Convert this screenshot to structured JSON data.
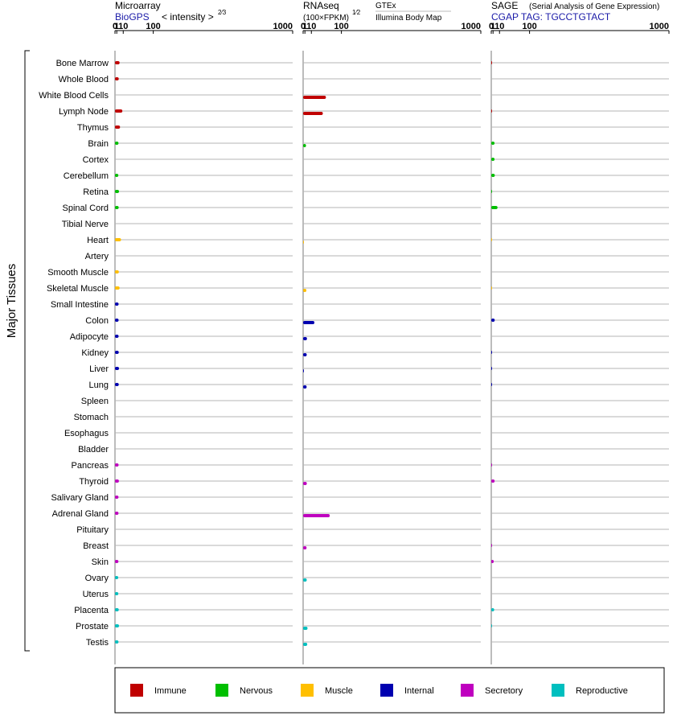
{
  "header": {
    "microarray": {
      "title": "Microarray",
      "source": "BioGPS",
      "scale_label": "< intensity >",
      "scale_power": "2⁄3"
    },
    "rnaseq": {
      "title": "RNAseq",
      "scale_label": "(100×FPKM)",
      "scale_power": "1⁄2",
      "source_top": "GTEx",
      "source_bottom": "Illumina Body Map"
    },
    "sage": {
      "title": "SAGE",
      "subtitle": "(Serial Analysis of Gene Expression)",
      "tag_label": "CGAP TAG: TGCCTGTACT"
    }
  },
  "y_axis_title": "Major Tissues",
  "colors": {
    "Immune": "#c00000",
    "Nervous": "#00bf00",
    "Muscle": "#ffbf00",
    "Internal": "#0000b0",
    "Secretory": "#bf00bf",
    "Reproductive": "#00bfbf"
  },
  "chart_data": {
    "type": "bar",
    "orientation": "horizontal",
    "x_scale": "power",
    "tick_labels": [
      "0",
      "1",
      "10",
      "100",
      "1000"
    ],
    "xlim": [
      0,
      1000
    ],
    "categories": [
      "Bone Marrow",
      "Whole Blood",
      "White Blood Cells",
      "Lymph Node",
      "Thymus",
      "Brain",
      "Cortex",
      "Cerebellum",
      "Retina",
      "Spinal Cord",
      "Tibial Nerve",
      "Heart",
      "Artery",
      "Smooth Muscle",
      "Skeletal Muscle",
      "Small Intestine",
      "Colon",
      "Adipocyte",
      "Kidney",
      "Liver",
      "Lung",
      "Spleen",
      "Stomach",
      "Esophagus",
      "Bladder",
      "Pancreas",
      "Thyroid",
      "Salivary Gland",
      "Adrenal Gland",
      "Pituitary",
      "Breast",
      "Skin",
      "Ovary",
      "Uterus",
      "Placenta",
      "Prostate",
      "Testis"
    ],
    "groups": [
      "Immune",
      "Immune",
      "Immune",
      "Immune",
      "Immune",
      "Nervous",
      "Nervous",
      "Nervous",
      "Nervous",
      "Nervous",
      "Nervous",
      "Muscle",
      "Muscle",
      "Muscle",
      "Muscle",
      "Internal",
      "Internal",
      "Internal",
      "Internal",
      "Internal",
      "Internal",
      "Secretory",
      "Secretory",
      "Secretory",
      "Secretory",
      "Secretory",
      "Secretory",
      "Secretory",
      "Secretory",
      "Secretory",
      "Secretory",
      "Secretory",
      "Reproductive",
      "Reproductive",
      "Reproductive",
      "Reproductive",
      "Reproductive"
    ],
    "panels": [
      {
        "name": "Microarray",
        "values": [
          4.2,
          3.1,
          null,
          8.5,
          4.8,
          2.8,
          null,
          2.6,
          3.4,
          3.0,
          null,
          6.3,
          null,
          3.2,
          4.2,
          2.9,
          2.9,
          2.9,
          3.1,
          3.4,
          3.1,
          null,
          null,
          null,
          null,
          2.9,
          3.3,
          2.8,
          2.8,
          null,
          null,
          2.7,
          2.5,
          2.6,
          3.1,
          3.4,
          2.8
        ]
      },
      {
        "name": "RNAseq",
        "values_gtex": [
          null,
          null,
          null,
          null,
          null,
          null,
          null,
          null,
          null,
          null,
          null,
          null,
          null,
          null,
          null,
          null,
          null,
          null,
          null,
          null,
          null,
          null,
          null,
          null,
          null,
          null,
          null,
          null,
          null,
          null,
          null,
          null,
          null,
          null,
          null,
          null,
          null
        ],
        "values_bodymap": [
          null,
          null,
          46,
          37,
          null,
          2.1,
          null,
          null,
          null,
          null,
          null,
          0.005,
          null,
          null,
          2.5,
          null,
          16,
          3.2,
          2.9,
          0.01,
          2.8,
          null,
          null,
          null,
          null,
          null,
          3.0,
          null,
          58,
          null,
          2.7,
          null,
          2.9,
          null,
          null,
          3.9,
          3.6
        ]
      },
      {
        "name": "SAGE",
        "values": [
          0.01,
          null,
          null,
          0.01,
          null,
          2.5,
          2.5,
          2.8,
          0.005,
          6.6,
          null,
          0.002,
          null,
          null,
          0.002,
          null,
          2.7,
          null,
          0.01,
          0.01,
          0.01,
          null,
          null,
          null,
          null,
          0.01,
          2.6,
          null,
          null,
          null,
          0.01,
          1.6,
          null,
          null,
          2.1,
          0.01,
          null
        ]
      }
    ],
    "legend": [
      "Immune",
      "Nervous",
      "Muscle",
      "Internal",
      "Secretory",
      "Reproductive"
    ],
    "legend_position": "bottom"
  }
}
